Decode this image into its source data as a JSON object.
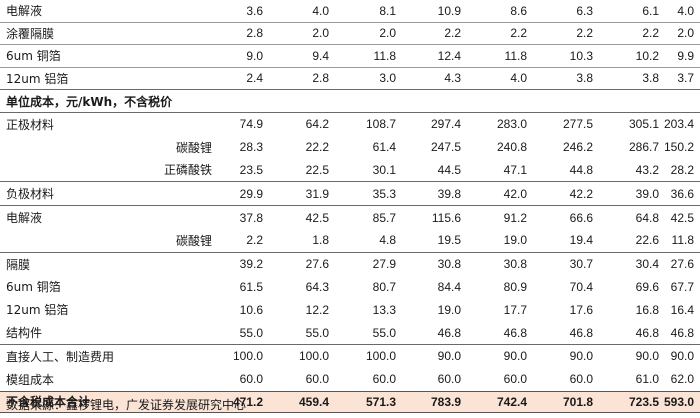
{
  "section_header": "单位成本，元/kWh，不含税价",
  "top_rows": [
    {
      "label": "电解液",
      "values": [
        "3.6",
        "4.0",
        "8.1",
        "10.9",
        "8.6",
        "6.3",
        "6.1",
        "4.0"
      ]
    },
    {
      "label": "涂覆隔膜",
      "values": [
        "2.8",
        "2.0",
        "2.0",
        "2.2",
        "2.2",
        "2.2",
        "2.2",
        "2.0"
      ]
    },
    {
      "label": "6um 铜箔",
      "values": [
        "9.0",
        "9.4",
        "11.8",
        "12.4",
        "11.8",
        "10.3",
        "10.2",
        "9.9"
      ]
    },
    {
      "label": "12um 铝箔",
      "values": [
        "2.4",
        "2.8",
        "3.0",
        "4.3",
        "4.0",
        "3.8",
        "3.8",
        "3.7"
      ]
    }
  ],
  "cost_groups": [
    [
      {
        "label": "正极材料",
        "sub": false,
        "values": [
          "74.9",
          "64.2",
          "108.7",
          "297.4",
          "283.0",
          "277.5",
          "305.1",
          "203.4"
        ]
      },
      {
        "label": "碳酸锂",
        "sub": true,
        "values": [
          "28.3",
          "22.2",
          "61.4",
          "247.5",
          "240.8",
          "246.2",
          "286.7",
          "150.2"
        ]
      },
      {
        "label": "正磷酸铁",
        "sub": true,
        "values": [
          "23.5",
          "22.5",
          "30.1",
          "44.5",
          "47.1",
          "44.8",
          "43.2",
          "28.2"
        ]
      }
    ],
    [
      {
        "label": "负极材料",
        "sub": false,
        "values": [
          "29.9",
          "31.9",
          "35.3",
          "39.8",
          "42.0",
          "42.2",
          "39.0",
          "36.6"
        ]
      }
    ],
    [
      {
        "label": "电解液",
        "sub": false,
        "values": [
          "37.8",
          "42.5",
          "85.7",
          "115.6",
          "91.2",
          "66.6",
          "64.8",
          "42.5"
        ]
      },
      {
        "label": "碳酸锂",
        "sub": true,
        "values": [
          "2.2",
          "1.8",
          "4.8",
          "19.5",
          "19.0",
          "19.4",
          "22.6",
          "11.8"
        ]
      }
    ],
    [
      {
        "label": "隔膜",
        "sub": false,
        "values": [
          "39.2",
          "27.6",
          "27.9",
          "30.8",
          "30.8",
          "30.7",
          "30.4",
          "27.6"
        ]
      },
      {
        "label": "6um 铜箔",
        "sub": false,
        "values": [
          "61.5",
          "64.3",
          "80.7",
          "84.4",
          "80.9",
          "70.4",
          "69.6",
          "67.7"
        ]
      },
      {
        "label": "12um 铝箔",
        "sub": false,
        "values": [
          "10.6",
          "12.2",
          "13.3",
          "19.0",
          "17.7",
          "17.6",
          "16.8",
          "16.4"
        ]
      },
      {
        "label": "结构件",
        "sub": false,
        "values": [
          "55.0",
          "55.0",
          "55.0",
          "46.8",
          "46.8",
          "46.8",
          "46.8",
          "46.8"
        ]
      }
    ],
    [
      {
        "label": "直接人工、制造费用",
        "sub": false,
        "values": [
          "100.0",
          "100.0",
          "100.0",
          "90.0",
          "90.0",
          "90.0",
          "90.0",
          "90.0"
        ]
      },
      {
        "label": "模组成本",
        "sub": false,
        "values": [
          "60.0",
          "60.0",
          "60.0",
          "60.0",
          "60.0",
          "60.0",
          "61.0",
          "62.0"
        ]
      }
    ]
  ],
  "total_row": {
    "label": "不含税成本合计",
    "values": [
      "471.2",
      "459.4",
      "571.3",
      "783.9",
      "742.4",
      "701.8",
      "723.5",
      "593.0"
    ]
  },
  "source_note": "数据来源：鑫椤锂电，广发证券发展研究中心"
}
